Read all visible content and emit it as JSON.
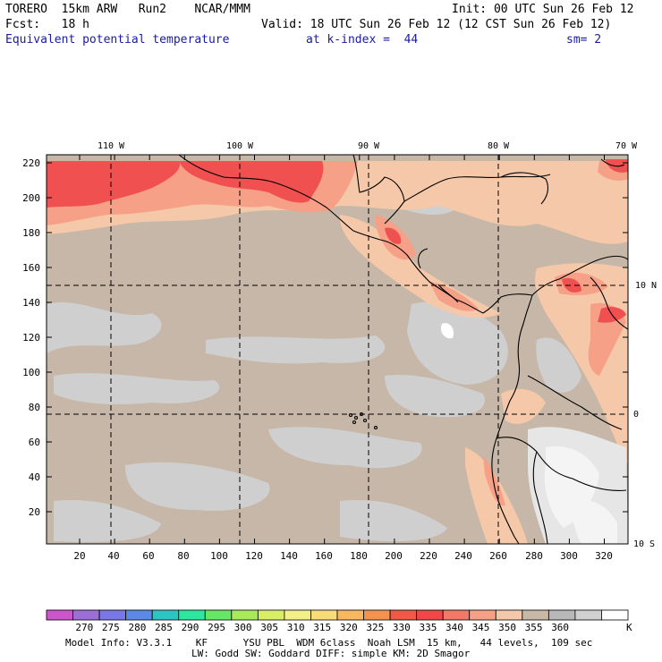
{
  "header": {
    "line1_left": "TORERO  15km ARW   Run2    NCAR/MMM",
    "line1_right": "Init: 00 UTC Sun 26 Feb 12",
    "line2_left": "Fcst:   18 h",
    "line2_right": "Valid: 18 UTC Sun 26 Feb 12 (12 CST Sun 26 Feb 12)",
    "line3_left": "Equivalent potential temperature",
    "line3_mid": "at k-index =  44",
    "line3_right": "sm= 2"
  },
  "map": {
    "x_ticks": [
      "20",
      "40",
      "60",
      "80",
      "100",
      "120",
      "140",
      "160",
      "180",
      "200",
      "220",
      "240",
      "260",
      "280",
      "300",
      "320"
    ],
    "y_ticks": [
      "20",
      "40",
      "60",
      "80",
      "100",
      "120",
      "140",
      "160",
      "180",
      "200",
      "220"
    ],
    "lon_labels": [
      "110 W",
      "100 W",
      "90 W",
      "80 W",
      "70 W"
    ],
    "lat_labels": [
      "10 N",
      "0",
      "10 S"
    ]
  },
  "colorbar": {
    "colors": [
      "#cc55cc",
      "#9b6fd6",
      "#7a78e6",
      "#5a8ae6",
      "#2fc4c4",
      "#2ee6a0",
      "#66e866",
      "#a8ea5a",
      "#d8ee66",
      "#f4f088",
      "#f8dc78",
      "#f8b860",
      "#f49250",
      "#ee5a46",
      "#f04848",
      "#f27868",
      "#f6a088",
      "#f4c8a8",
      "#c8b8a8",
      "#b8b8b8",
      "#d0d0d0",
      "#ffffff"
    ],
    "labels": [
      "270",
      "275",
      "280",
      "285",
      "290",
      "295",
      "300",
      "305",
      "310",
      "315",
      "320",
      "325",
      "330",
      "335",
      "340",
      "345",
      "350",
      "355",
      "360"
    ],
    "unit": "K"
  },
  "footer": {
    "line1": "Model Info: V3.3.1    KF      YSU PBL  WDM 6class  Noah LSM  15 km,   44 levels,  109 sec",
    "line2": "LW: Godd SW: Goddard DIFF: simple KM: 2D Smagor"
  }
}
